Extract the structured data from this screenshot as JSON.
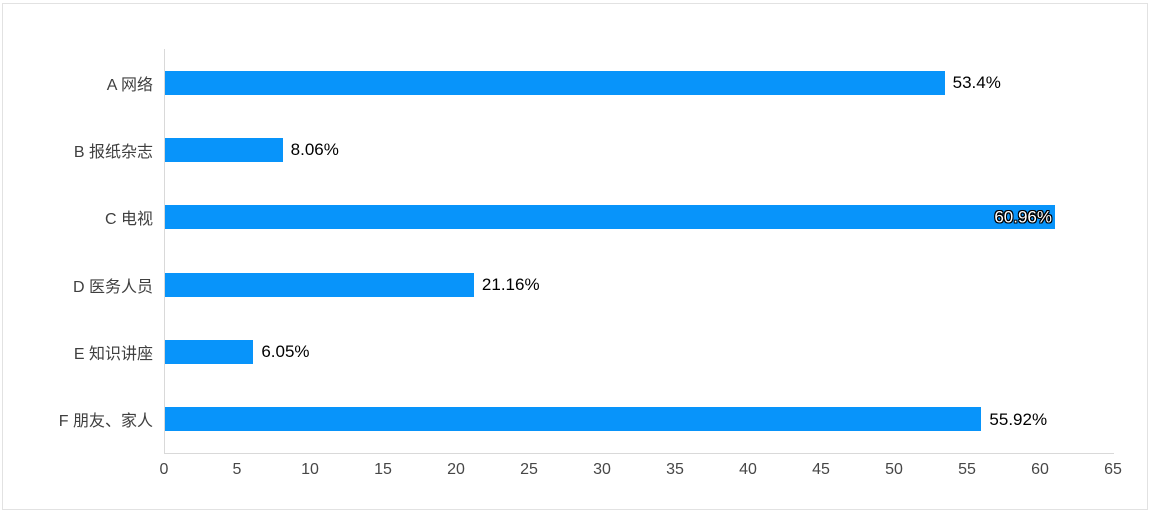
{
  "chart_data": {
    "type": "bar",
    "orientation": "horizontal",
    "title": "",
    "xlabel": "",
    "ylabel": "",
    "categories": [
      "A 网络",
      "B 报纸杂志",
      "C 电视",
      "D 医务人员",
      "E 知识讲座",
      "F 朋友、家人"
    ],
    "values": [
      53.4,
      8.06,
      60.96,
      21.16,
      6.05,
      55.92
    ],
    "data_labels": [
      "53.4%",
      "8.06%",
      "60.96%",
      "21.16%",
      "6.05%",
      "55.92%"
    ],
    "data_label_inside": [
      false,
      false,
      true,
      false,
      false,
      false
    ],
    "x_ticks": [
      0,
      5,
      10,
      15,
      20,
      25,
      30,
      35,
      40,
      45,
      50,
      55,
      60,
      65
    ],
    "xlim": [
      0,
      65
    ],
    "grid": false,
    "legend": false,
    "colors": {
      "bar": "#0894fa",
      "axis_line": "#d9d9d9",
      "tick_text": "#474747",
      "category_text": "#3f3f3f",
      "data_label_text": "#000000",
      "inside_label_text": "#ffffff",
      "card_border": "#e2e2e2",
      "background": "#ffffff"
    }
  }
}
